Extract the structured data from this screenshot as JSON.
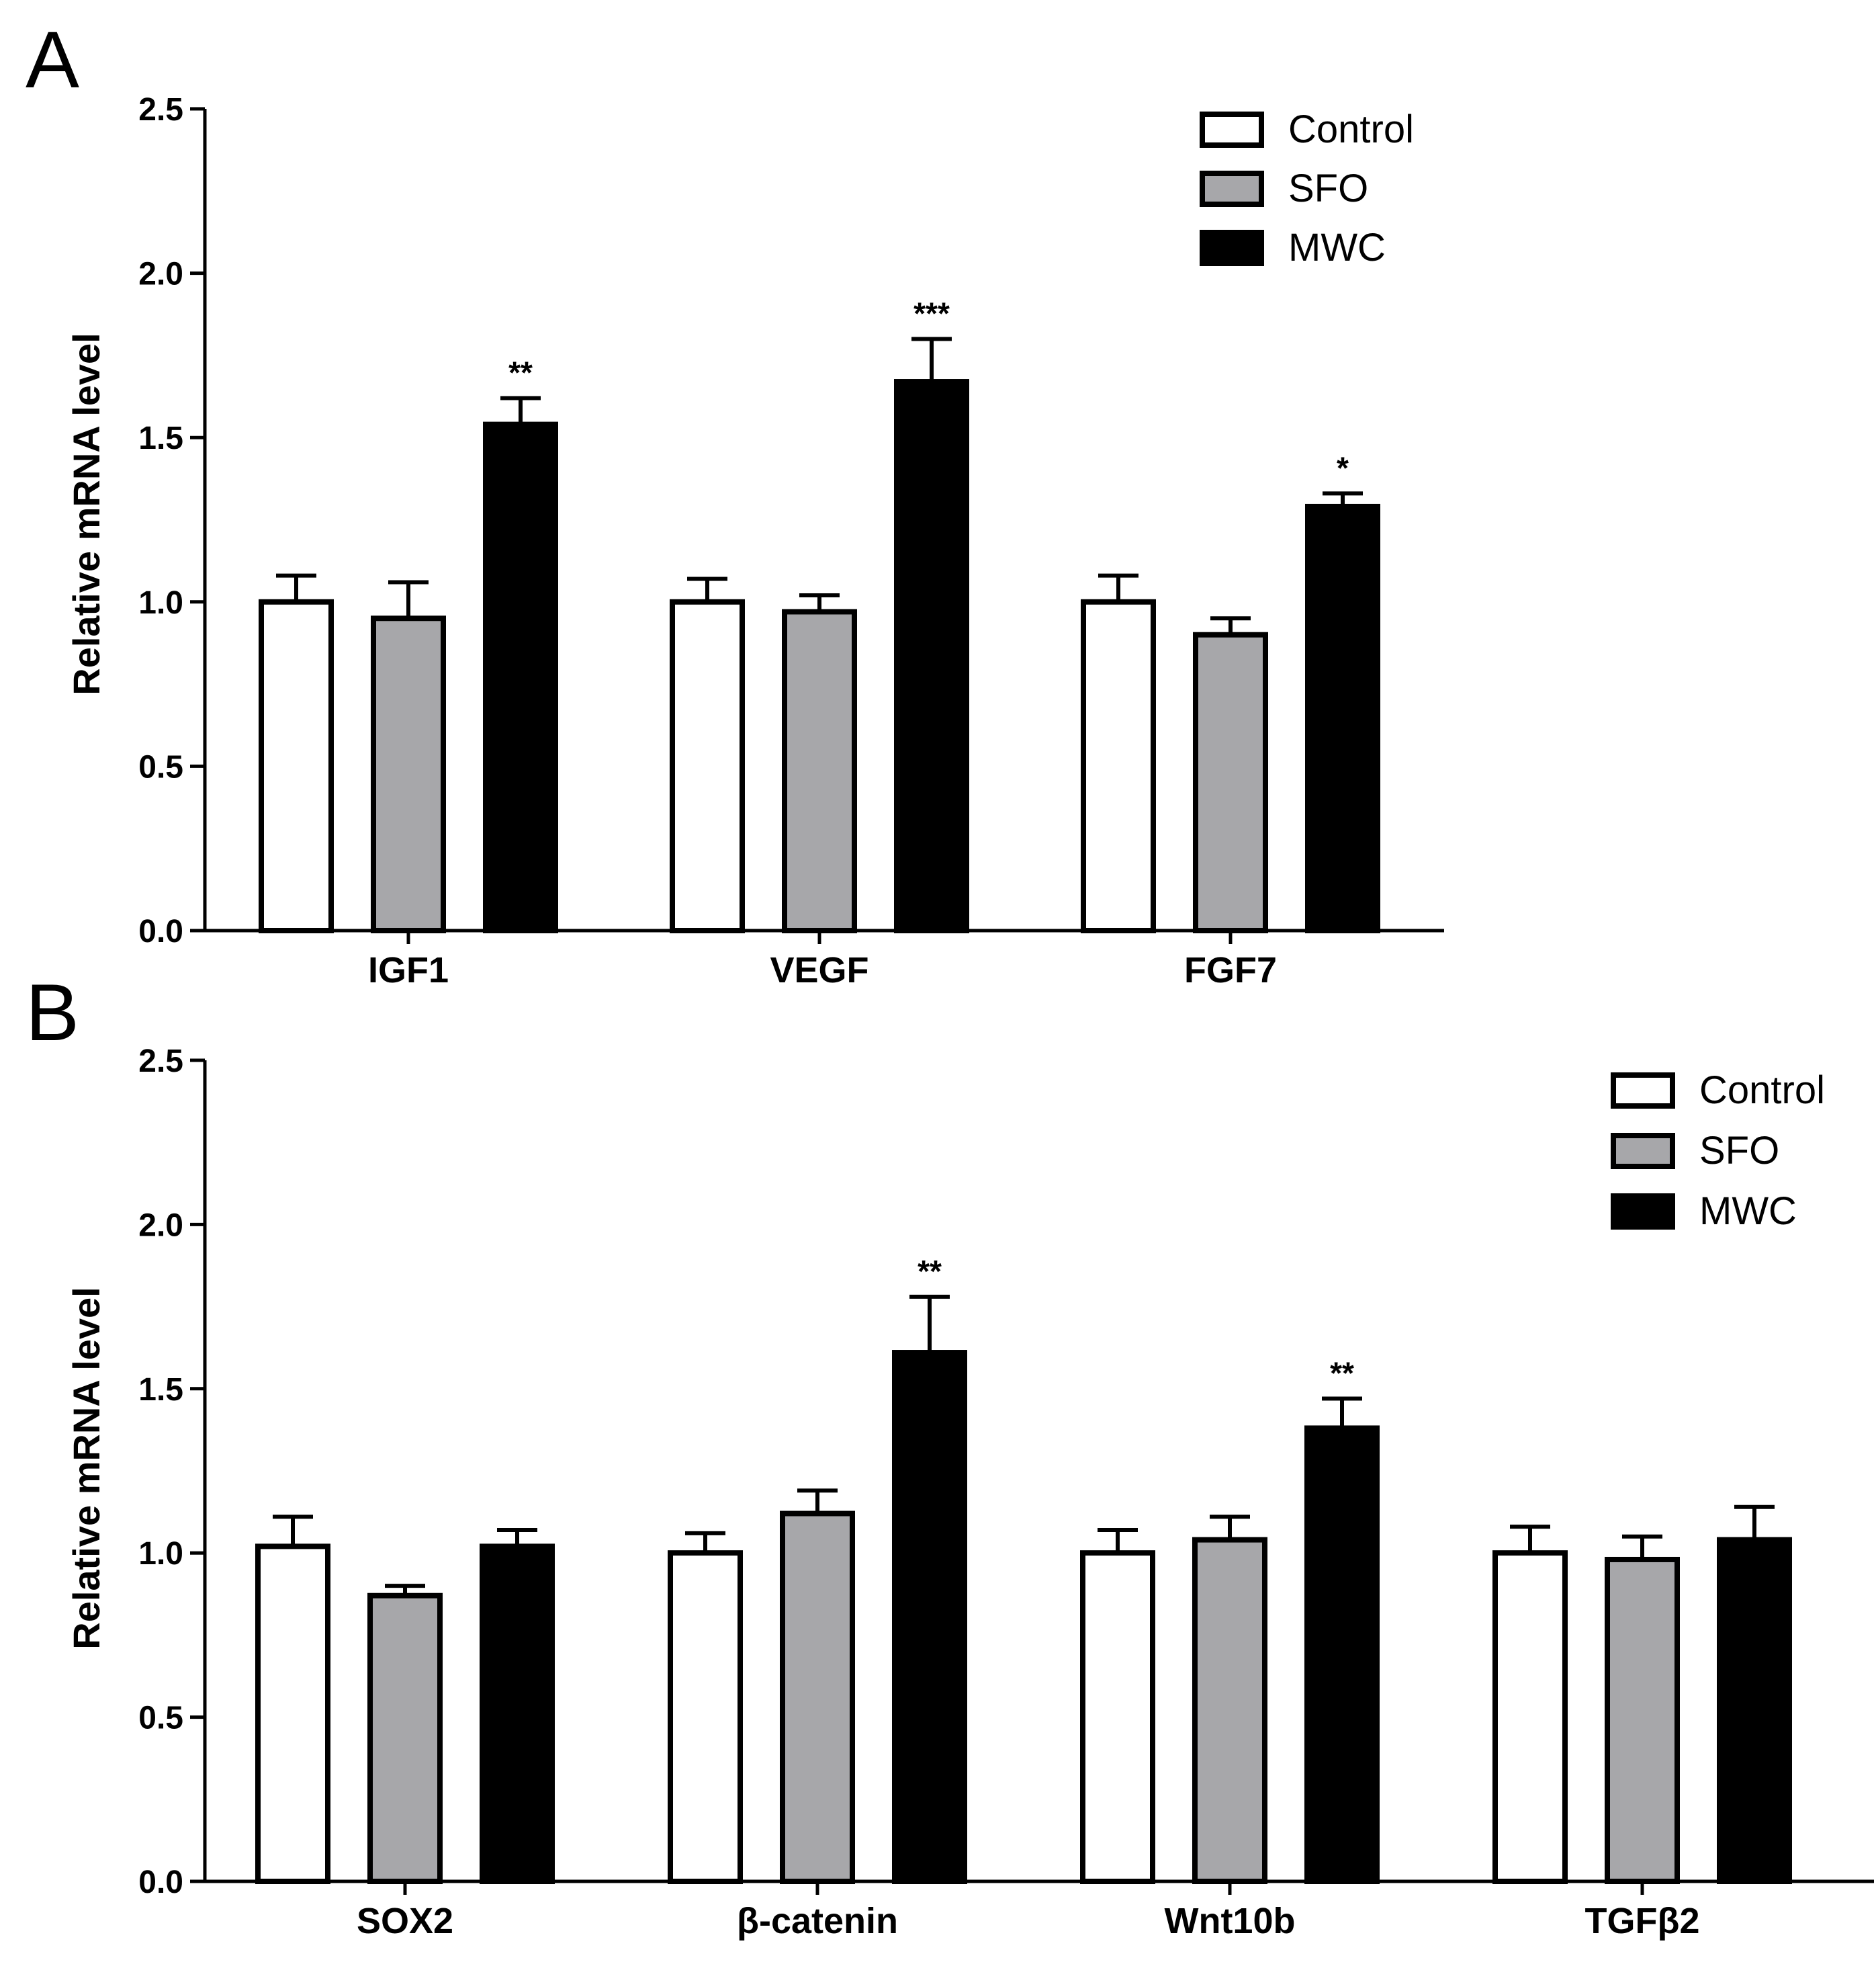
{
  "colors": {
    "Control": "#ffffff",
    "SFO": "#a7a7aa",
    "MWC": "#000000",
    "stroke": "#000000"
  },
  "chart_data": [
    {
      "panel": "A",
      "type": "bar",
      "ylabel": "Relative mRNA level",
      "xlabel": "",
      "ylim": [
        0,
        2.5
      ],
      "yticks": [
        "0.0",
        "0.5",
        "1.0",
        "1.5",
        "2.0",
        "2.5"
      ],
      "legend_position": "top-right",
      "categories": [
        "IGF1",
        "VEGF",
        "FGF7"
      ],
      "series": [
        {
          "name": "Control",
          "values": [
            1.0,
            1.0,
            1.0
          ],
          "errors": [
            0.08,
            0.07,
            0.08
          ]
        },
        {
          "name": "SFO",
          "values": [
            0.95,
            0.97,
            0.9
          ],
          "errors": [
            0.11,
            0.05,
            0.05
          ]
        },
        {
          "name": "MWC",
          "values": [
            1.54,
            1.67,
            1.29
          ],
          "errors": [
            0.08,
            0.13,
            0.04
          ]
        }
      ],
      "annotations": [
        {
          "category": "IGF1",
          "series": "MWC",
          "text": "**"
        },
        {
          "category": "VEGF",
          "series": "MWC",
          "text": "***"
        },
        {
          "category": "FGF7",
          "series": "MWC",
          "text": "*"
        }
      ]
    },
    {
      "panel": "B",
      "type": "bar",
      "ylabel": "Relative mRNA level",
      "xlabel": "",
      "ylim": [
        0,
        2.5
      ],
      "yticks": [
        "0.0",
        "0.5",
        "1.0",
        "1.5",
        "2.0",
        "2.5"
      ],
      "legend_position": "top-right",
      "categories": [
        "SOX2",
        "β-catenin",
        "Wnt10b",
        "TGFβ2"
      ],
      "series": [
        {
          "name": "Control",
          "values": [
            1.02,
            1.0,
            1.0,
            1.0
          ],
          "errors": [
            0.09,
            0.06,
            0.07,
            0.08
          ]
        },
        {
          "name": "SFO",
          "values": [
            0.87,
            1.12,
            1.04,
            0.98
          ],
          "errors": [
            0.03,
            0.07,
            0.07,
            0.07
          ]
        },
        {
          "name": "MWC",
          "values": [
            1.02,
            1.61,
            1.38,
            1.04
          ],
          "errors": [
            0.05,
            0.17,
            0.09,
            0.1
          ]
        }
      ],
      "annotations": [
        {
          "category": "β-catenin",
          "series": "MWC",
          "text": "**"
        },
        {
          "category": "Wnt10b",
          "series": "MWC",
          "text": "**"
        }
      ]
    }
  ]
}
